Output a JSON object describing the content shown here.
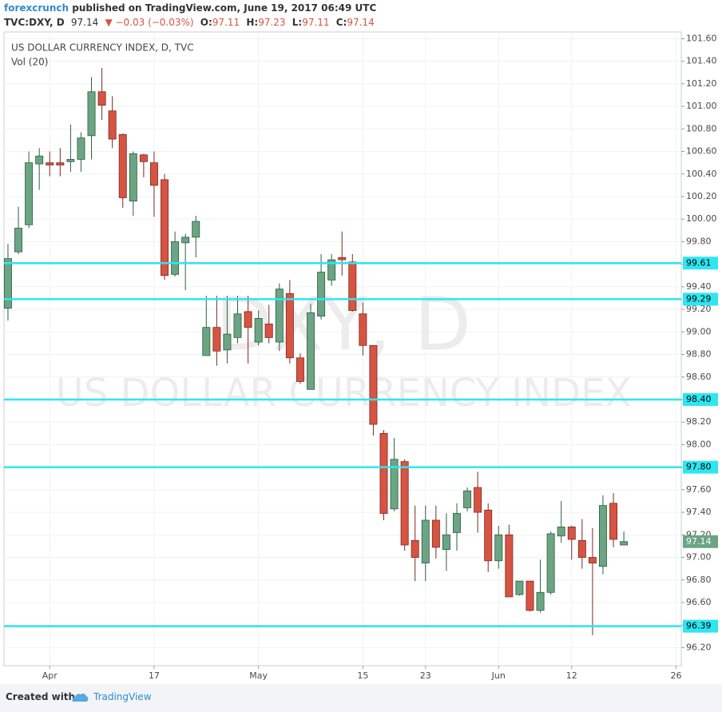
{
  "header": {
    "author": "forexcrunch",
    "published": "published on TradingView.com, June 19, 2017 06:49 UTC",
    "symbol": "TVC:DXY, D",
    "change": "▼ −0.03 (−0.03%)",
    "open_label": "O:",
    "high_label": "H:",
    "low_label": "L:",
    "close_label": "C:"
  },
  "footer": {
    "created_with": "Created with",
    "brand": "TradingView"
  },
  "chart_data": {
    "type": "candlestick",
    "title": "US DOLLAR CURRENCY INDEX, D, TVC",
    "volume_label": "Vol (20)",
    "watermark_symbol": "DXY, D",
    "watermark_name": "US DOLLAR CURRENCY INDEX",
    "up_color": "#6ba583",
    "down_color": "#d75442",
    "level_color": "#2ee6f2",
    "grid": true,
    "x": [
      0,
      1,
      2,
      3,
      4,
      5,
      6,
      7,
      8,
      9,
      10,
      11,
      12,
      13,
      14,
      15,
      16,
      17,
      18,
      19,
      20,
      21,
      22,
      23,
      24,
      25,
      26,
      27,
      28,
      29,
      30,
      31,
      32,
      33,
      34,
      35,
      36,
      37,
      38,
      39,
      40,
      41,
      42,
      43,
      44,
      45,
      46,
      47,
      48,
      49,
      50,
      51,
      52,
      53,
      54,
      55,
      56,
      57,
      58,
      59
    ],
    "open": [
      99.21,
      99.71,
      99.95,
      100.49,
      100.5,
      100.5,
      100.51,
      100.53,
      100.74,
      101.13,
      100.96,
      100.75,
      100.16,
      100.57,
      100.5,
      100.35,
      99.51,
      99.79,
      99.84,
      98.79,
      99.04,
      98.84,
      98.95,
      99.18,
      98.91,
      99.07,
      98.91,
      99.34,
      98.77,
      98.49,
      99.14,
      99.46,
      99.66,
      99.62,
      99.16,
      98.88,
      98.1,
      97.43,
      97.85,
      97.15,
      96.95,
      97.33,
      97.07,
      97.22,
      97.44,
      97.62,
      97.42,
      96.97,
      97.2,
      96.67,
      96.79,
      96.53,
      96.69,
      97.19,
      97.27,
      97.15,
      97.0,
      96.92,
      97.48,
      97.11
    ],
    "high": [
      99.78,
      100.11,
      100.6,
      100.63,
      100.6,
      100.63,
      100.84,
      100.77,
      101.26,
      101.34,
      101.09,
      100.76,
      100.6,
      100.58,
      100.6,
      100.4,
      99.89,
      99.87,
      100.03,
      99.32,
      99.32,
      99.32,
      99.32,
      99.32,
      99.19,
      99.24,
      99.43,
      99.46,
      98.81,
      99.25,
      99.69,
      99.69,
      99.89,
      99.69,
      99.26,
      98.88,
      98.13,
      98.06,
      97.87,
      97.46,
      97.46,
      97.46,
      97.39,
      97.48,
      97.62,
      97.76,
      97.48,
      97.28,
      97.29,
      96.79,
      96.79,
      96.98,
      97.23,
      97.5,
      97.28,
      97.34,
      97.26,
      97.55,
      97.57,
      97.23
    ],
    "low": [
      99.1,
      99.69,
      99.92,
      100.26,
      100.38,
      100.38,
      100.42,
      100.42,
      100.53,
      100.88,
      100.63,
      100.1,
      100.03,
      100.37,
      100.02,
      99.46,
      99.49,
      99.37,
      99.66,
      98.79,
      98.7,
      98.72,
      98.9,
      98.72,
      98.88,
      98.9,
      98.83,
      98.72,
      98.54,
      98.49,
      99.11,
      99.41,
      99.5,
      99.18,
      98.79,
      98.08,
      97.33,
      97.41,
      97.06,
      96.79,
      96.79,
      96.99,
      96.88,
      97.06,
      97.41,
      97.22,
      96.87,
      96.9,
      96.65,
      96.66,
      96.52,
      96.51,
      96.67,
      97.13,
      96.98,
      96.9,
      96.31,
      96.85,
      97.09,
      97.11
    ],
    "close": [
      99.65,
      99.92,
      100.5,
      100.56,
      100.48,
      100.48,
      100.53,
      100.72,
      101.13,
      101.01,
      100.71,
      100.19,
      100.58,
      100.51,
      100.3,
      99.5,
      99.8,
      99.84,
      99.98,
      99.04,
      98.83,
      98.98,
      99.16,
      99.04,
      99.12,
      98.95,
      99.38,
      98.77,
      98.56,
      99.17,
      99.53,
      99.64,
      99.64,
      99.19,
      98.88,
      98.18,
      97.39,
      97.87,
      97.11,
      97.0,
      97.33,
      97.09,
      97.2,
      97.39,
      97.59,
      97.4,
      96.97,
      97.2,
      96.65,
      96.79,
      96.53,
      96.69,
      97.21,
      97.27,
      97.16,
      97.0,
      96.95,
      97.46,
      97.16,
      97.14
    ],
    "xlim": [
      -0.38,
      64.5
    ],
    "xticks": [
      {
        "value": 4,
        "label": "Apr"
      },
      {
        "value": 14,
        "label": "17"
      },
      {
        "value": 24,
        "label": "May"
      },
      {
        "value": 34,
        "label": "15"
      },
      {
        "value": 40,
        "label": "23"
      },
      {
        "value": 47,
        "label": "Jun"
      },
      {
        "value": 54,
        "label": "12"
      },
      {
        "value": 64,
        "label": "26"
      }
    ],
    "ylim": [
      96.04,
      101.66
    ],
    "yticks": [
      {
        "value": 96.2,
        "label": "96.20"
      },
      {
        "value": 96.4,
        "label": "96.40"
      },
      {
        "value": 96.6,
        "label": "96.60"
      },
      {
        "value": 96.8,
        "label": "96.80"
      },
      {
        "value": 97.0,
        "label": "97.00"
      },
      {
        "value": 97.2,
        "label": "97.20"
      },
      {
        "value": 97.4,
        "label": "97.40"
      },
      {
        "value": 97.6,
        "label": "97.60"
      },
      {
        "value": 97.8,
        "label": "97.80"
      },
      {
        "value": 98.0,
        "label": "98.00"
      },
      {
        "value": 98.2,
        "label": "98.20"
      },
      {
        "value": 98.4,
        "label": "98.40"
      },
      {
        "value": 98.6,
        "label": "98.60"
      },
      {
        "value": 98.8,
        "label": "98.80"
      },
      {
        "value": 99.0,
        "label": "99.00"
      },
      {
        "value": 99.2,
        "label": "99.20"
      },
      {
        "value": 99.4,
        "label": "99.40"
      },
      {
        "value": 99.6,
        "label": "99.60"
      },
      {
        "value": 99.8,
        "label": "99.80"
      },
      {
        "value": 100.0,
        "label": "100.00"
      },
      {
        "value": 100.2,
        "label": "100.20"
      },
      {
        "value": 100.4,
        "label": "100.40"
      },
      {
        "value": 100.6,
        "label": "100.60"
      },
      {
        "value": 100.8,
        "label": "100.80"
      },
      {
        "value": 101.0,
        "label": "101.00"
      },
      {
        "value": 101.2,
        "label": "101.20"
      },
      {
        "value": 101.4,
        "label": "101.40"
      },
      {
        "value": 101.6,
        "label": "101.60"
      }
    ],
    "levels": [
      99.61,
      99.29,
      {
        "value": 98.4,
        "label": "98.40"
      },
      {
        "value": 97.8,
        "label": "97.80"
      },
      96.39
    ]
  }
}
